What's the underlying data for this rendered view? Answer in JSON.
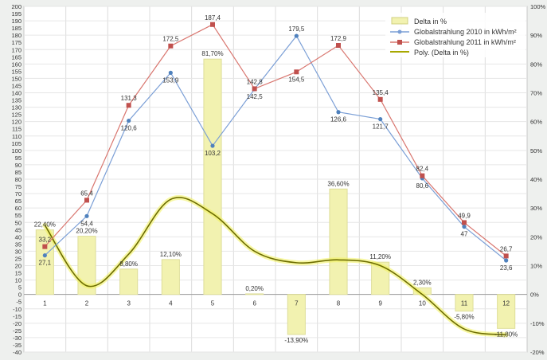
{
  "chart_data": {
    "type": "bar",
    "categories": [
      "1",
      "2",
      "3",
      "4",
      "5",
      "6",
      "7",
      "8",
      "9",
      "10",
      "11",
      "12"
    ],
    "y_left": {
      "ylim": [
        -40,
        200
      ],
      "tick_step": 5
    },
    "y_right": {
      "ylim": [
        -20,
        100
      ],
      "tick_step": 10,
      "tick_suffix": "%"
    },
    "grid": true,
    "legend_position": "top-right",
    "series": [
      {
        "name": "Delta in %",
        "type": "bar",
        "axis": "right",
        "color": "#f2f2b0",
        "values": [
          22.4,
          20.2,
          8.8,
          12.1,
          81.7,
          0.2,
          -13.9,
          36.6,
          11.2,
          2.3,
          -5.8,
          -11.8
        ],
        "labels": [
          "22,40%",
          "20,20%",
          "8,80%",
          "12,10%",
          "81,70%",
          "0,20%",
          "-13,90%",
          "36,60%",
          "11,20%",
          "2,30%",
          "-5,80%",
          "-11,80%"
        ]
      },
      {
        "name": "Globalstrahlung 2010 in kWh/m²",
        "type": "line",
        "axis": "left",
        "color": "#7b9fd6",
        "values": [
          27.1,
          54.4,
          120.6,
          153.9,
          103.2,
          142.5,
          179.5,
          126.6,
          121.7,
          80.6,
          47,
          23.6
        ],
        "labels": [
          "27,1",
          "54,4",
          "120,6",
          "153,9",
          "103,2",
          "142,5",
          "179,5",
          "126,6",
          "121,7",
          "80,6",
          "47",
          "23,6"
        ]
      },
      {
        "name": "Globalstrahlung 2011 in kWh/m²",
        "type": "line",
        "axis": "left",
        "color": "#d9766f",
        "values": [
          33.2,
          65.4,
          131.3,
          172.5,
          187.4,
          142.8,
          154.5,
          172.9,
          135.4,
          82.4,
          49.9,
          26.7
        ],
        "labels": [
          "33,2",
          "65,4",
          "131,3",
          "172,5",
          "187,4",
          "142,8",
          "154,5",
          "172,9",
          "135,4",
          "82,4",
          "49,9",
          "26,7"
        ]
      },
      {
        "name": "Poly. (Delta in %)",
        "type": "trendline",
        "axis": "right",
        "color": "#b8b800",
        "values": [
          24,
          3,
          14,
          33,
          28,
          15,
          11,
          12,
          10,
          0,
          -12,
          -14
        ]
      }
    ]
  }
}
